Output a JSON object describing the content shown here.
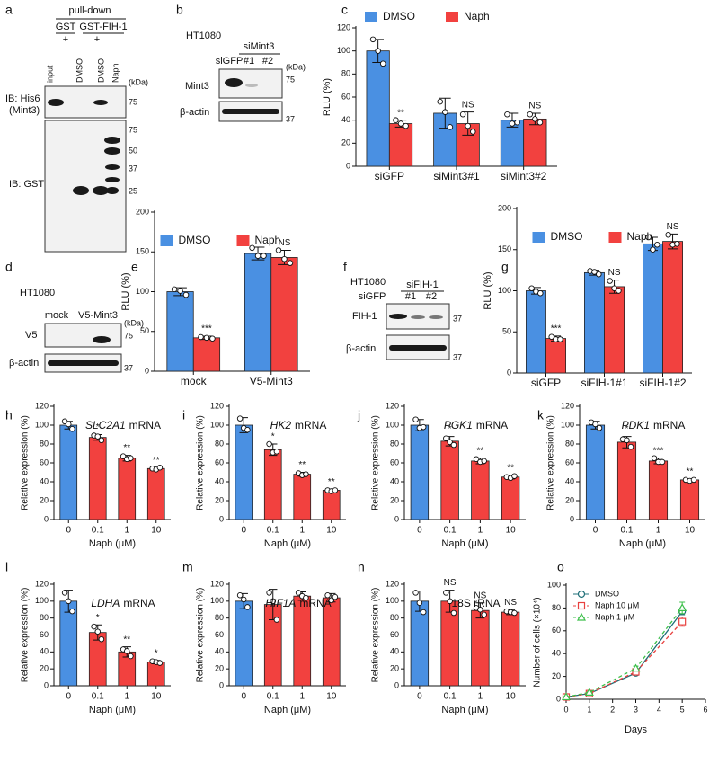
{
  "blots": [
    {
      "label": "a",
      "texts": [
        "pull-down",
        "GST",
        "+",
        "GST-FIH-1",
        "+",
        "input",
        "DMSO",
        "DMSO",
        "Naph",
        "IB: His6",
        "(Mint3)",
        "IB: GST",
        "(kDa)",
        "75",
        "75",
        "50",
        "37",
        "25"
      ]
    },
    {
      "label": "b",
      "texts": [
        "HT1080",
        "siMint3",
        "siGFP",
        "#1",
        "#2",
        "(kDa)",
        "Mint3",
        "75",
        "β-actin",
        "37"
      ]
    },
    {
      "label": "d",
      "texts": [
        "HT1080",
        "mock",
        "V5-Mint3",
        "(kDa)",
        "V5",
        "75",
        "β-actin",
        "37"
      ]
    },
    {
      "label": "f",
      "texts": [
        "HT1080",
        "siFIH-1",
        "siGFP",
        "#1",
        "#2",
        "FIH-1",
        "37",
        "β-actin",
        "37"
      ]
    }
  ],
  "chart_data": [
    {
      "type": "bar",
      "label": "c",
      "ylabel": "RLU (%)",
      "categories": [
        "siGFP",
        "siMint3#1",
        "siMint3#2"
      ],
      "ylim": [
        0,
        120
      ],
      "yticks": [
        0,
        20,
        40,
        60,
        80,
        100,
        120
      ],
      "legend": "top",
      "series": [
        {
          "name": "DMSO",
          "color": "#4a90e2",
          "values": [
            100,
            46,
            40
          ],
          "errors": [
            10,
            13,
            6
          ],
          "points": [
            [
              110,
              100,
              89
            ],
            [
              56,
              47,
              34
            ],
            [
              45,
              37,
              38
            ]
          ]
        },
        {
          "name": "Naph",
          "color": "#f2413f",
          "values": [
            37,
            37,
            41
          ],
          "errors": [
            3,
            10,
            5
          ],
          "points": [
            [
              40,
              37,
              35
            ],
            [
              45,
              35,
              30
            ],
            [
              45,
              41,
              38
            ]
          ],
          "annotations": [
            "**",
            "NS",
            "NS"
          ]
        }
      ]
    },
    {
      "type": "bar",
      "label": "e",
      "ylabel": "RLU (%)",
      "categories": [
        "mock",
        "V5-Mint3"
      ],
      "ylim": [
        0,
        200
      ],
      "yticks": [
        0,
        50,
        100,
        150,
        200
      ],
      "legend": "upper center",
      "series": [
        {
          "name": "DMSO",
          "color": "#4a90e2",
          "values": [
            100,
            148
          ],
          "errors": [
            5,
            8
          ],
          "points": [
            [
              103,
              101,
              96
            ],
            [
              155,
              145,
              145
            ]
          ]
        },
        {
          "name": "Naph",
          "color": "#f2413f",
          "values": [
            42,
            143
          ],
          "errors": [
            2,
            9
          ],
          "points": [
            [
              43,
              42,
              41
            ],
            [
              152,
              141,
              136
            ]
          ],
          "annotations": [
            "***",
            "NS"
          ]
        }
      ]
    },
    {
      "type": "bar",
      "label": "g",
      "ylabel": "RLU (%)",
      "categories": [
        "siGFP",
        "siFIH-1#1",
        "siFIH-1#2"
      ],
      "ylim": [
        0,
        200
      ],
      "yticks": [
        0,
        50,
        100,
        150,
        200
      ],
      "legend": "upper center",
      "series": [
        {
          "name": "DMSO",
          "color": "#4a90e2",
          "values": [
            100,
            122,
            157
          ],
          "errors": [
            4,
            3,
            8
          ],
          "points": [
            [
              103,
              99,
              97
            ],
            [
              124,
              123,
              120
            ],
            [
              165,
              150,
              156
            ]
          ]
        },
        {
          "name": "Naph",
          "color": "#f2413f",
          "values": [
            42,
            105,
            160
          ],
          "errors": [
            3,
            8,
            9
          ],
          "points": [
            [
              44,
              41,
              41
            ],
            [
              112,
              103,
              100
            ],
            [
              168,
              156,
              157
            ]
          ],
          "annotations": [
            "***",
            "NS",
            "NS"
          ]
        }
      ]
    },
    {
      "type": "bar",
      "label": "h",
      "title_gene": "SLC2A1",
      "title": "mRNA",
      "ylabel": "Relative expression (%)",
      "xlabel": "Naph (μM)",
      "categories": [
        "0",
        "0.1",
        "1",
        "10"
      ],
      "ylim": [
        0,
        120
      ],
      "yticks": [
        0,
        20,
        40,
        60,
        80,
        100,
        120
      ],
      "series": [
        {
          "colors": [
            "#4a90e2",
            "#f2413f",
            "#f2413f",
            "#f2413f"
          ],
          "values": [
            100,
            87,
            65,
            54
          ],
          "errors": [
            4,
            3,
            3,
            1
          ],
          "points": [
            [
              104,
              101,
              96
            ],
            [
              89,
              88,
              84
            ],
            [
              67,
              64,
              65
            ],
            [
              54,
              53,
              55
            ]
          ],
          "annotations": [
            null,
            "*",
            "**",
            "**"
          ]
        }
      ]
    },
    {
      "type": "bar",
      "label": "i",
      "title_gene": "HK2",
      "title": "mRNA",
      "ylabel": "Relative expression (%)",
      "xlabel": "Naph (μM)",
      "categories": [
        "0",
        "0.1",
        "1",
        "10"
      ],
      "ylim": [
        0,
        120
      ],
      "yticks": [
        0,
        20,
        40,
        60,
        80,
        100,
        120
      ],
      "series": [
        {
          "colors": [
            "#4a90e2",
            "#f2413f",
            "#f2413f",
            "#f2413f"
          ],
          "values": [
            100,
            74,
            48,
            31
          ],
          "errors": [
            8,
            6,
            2,
            1
          ],
          "points": [
            [
              107,
              97,
              95
            ],
            [
              80,
              71,
              72
            ],
            [
              49,
              47,
              48
            ],
            [
              31,
              30,
              31
            ]
          ],
          "annotations": [
            null,
            "*",
            "**",
            "**"
          ]
        }
      ]
    },
    {
      "type": "bar",
      "label": "j",
      "title_gene": "PGK1",
      "title": "mRNA",
      "ylabel": "Relative expression (%)",
      "xlabel": "Naph (μM)",
      "categories": [
        "0",
        "0.1",
        "1",
        "10"
      ],
      "ylim": [
        0,
        120
      ],
      "yticks": [
        0,
        20,
        40,
        60,
        80,
        100,
        120
      ],
      "series": [
        {
          "colors": [
            "#4a90e2",
            "#f2413f",
            "#f2413f",
            "#f2413f"
          ],
          "values": [
            100,
            83,
            62,
            45
          ],
          "errors": [
            6,
            5,
            3,
            2
          ],
          "points": [
            [
              106,
              97,
              98
            ],
            [
              86,
              82,
              79
            ],
            [
              64,
              61,
              62
            ],
            [
              45,
              44,
              46
            ]
          ],
          "annotations": [
            null,
            "*",
            "**",
            "**"
          ]
        }
      ]
    },
    {
      "type": "bar",
      "label": "k",
      "title_gene": "PDK1",
      "title": "mRNA",
      "ylabel": "Relative expression (%)",
      "xlabel": "Naph (μM)",
      "categories": [
        "0",
        "0.1",
        "1",
        "10"
      ],
      "ylim": [
        0,
        120
      ],
      "yticks": [
        0,
        20,
        40,
        60,
        80,
        100,
        120
      ],
      "series": [
        {
          "colors": [
            "#4a90e2",
            "#f2413f",
            "#f2413f",
            "#f2413f"
          ],
          "values": [
            100,
            82,
            62,
            42
          ],
          "errors": [
            4,
            6,
            3,
            1
          ],
          "points": [
            [
              103,
              101,
              97
            ],
            [
              85,
              84,
              77
            ],
            [
              65,
              61,
              61
            ],
            [
              42,
              41,
              42
            ]
          ],
          "annotations": [
            null,
            "*",
            "***",
            "**"
          ]
        }
      ]
    },
    {
      "type": "bar",
      "label": "l",
      "title_gene": "LDHA",
      "title": "mRNA",
      "ylabel": "Relative expression (%)",
      "xlabel": "Naph (μM)",
      "categories": [
        "0",
        "0.1",
        "1",
        "10"
      ],
      "ylim": [
        0,
        120
      ],
      "yticks": [
        0,
        20,
        40,
        60,
        80,
        100,
        120
      ],
      "series": [
        {
          "colors": [
            "#4a90e2",
            "#f2413f",
            "#f2413f",
            "#f2413f"
          ],
          "values": [
            100,
            63,
            40,
            28
          ],
          "errors": [
            13,
            9,
            6,
            2
          ],
          "points": [
            [
              110,
              100,
              88
            ],
            [
              70,
              64,
              55
            ],
            [
              43,
              41,
              35
            ],
            [
              29,
              28,
              27
            ]
          ],
          "annotations": [
            null,
            "*",
            "**",
            "*"
          ]
        }
      ]
    },
    {
      "type": "bar",
      "label": "m",
      "title_gene": "HIF1A",
      "title": "mRNA",
      "ylabel": "Relative expression (%)",
      "xlabel": "Naph (μM)",
      "categories": [
        "0",
        "0.1",
        "1",
        "10"
      ],
      "ylim": [
        0,
        120
      ],
      "yticks": [
        0,
        20,
        40,
        60,
        80,
        100,
        120
      ],
      "series": [
        {
          "colors": [
            "#4a90e2",
            "#f2413f",
            "#f2413f",
            "#f2413f"
          ],
          "values": [
            100,
            96,
            106,
            104
          ],
          "errors": [
            9,
            18,
            5,
            5
          ],
          "points": [
            [
              107,
              102,
              93
            ],
            [
              110,
              100,
              78
            ],
            [
              110,
              106,
              104
            ],
            [
              107,
              101,
              105
            ]
          ]
        }
      ]
    },
    {
      "type": "bar",
      "label": "n",
      "title": "18S rRNA",
      "ylabel": "Relative expression (%)",
      "xlabel": "Naph (μM)",
      "categories": [
        "0",
        "0.1",
        "1",
        "10"
      ],
      "ylim": [
        0,
        120
      ],
      "yticks": [
        0,
        20,
        40,
        60,
        80,
        100,
        120
      ],
      "series": [
        {
          "colors": [
            "#4a90e2",
            "#f2413f",
            "#f2413f",
            "#f2413f"
          ],
          "values": [
            100,
            100,
            89,
            87
          ],
          "errors": [
            12,
            13,
            9,
            3
          ],
          "points": [
            [
              110,
              98,
              87
            ],
            [
              110,
              100,
              86
            ],
            [
              92,
              90,
              84
            ],
            [
              88,
              87,
              86
            ]
          ],
          "annotations": [
            null,
            "NS",
            "NS",
            "NS"
          ]
        }
      ]
    },
    {
      "type": "line",
      "label": "o",
      "ylabel": "Number of cells (×10⁴)",
      "xlabel": "Days",
      "x": [
        0,
        1,
        3,
        5
      ],
      "xlim": [
        0,
        6
      ],
      "xticks": [
        0,
        1,
        2,
        3,
        4,
        5,
        6
      ],
      "ylim": [
        0,
        100
      ],
      "yticks": [
        0,
        20,
        40,
        60,
        80,
        100
      ],
      "legend": "upper left",
      "series": [
        {
          "name": "DMSO",
          "color": "#1f6f78",
          "marker": "circle",
          "dashed": false,
          "values": [
            2,
            5,
            23,
            77
          ],
          "errors": [
            0.3,
            0.5,
            2,
            3
          ]
        },
        {
          "name": "Naph 10 μM",
          "color": "#e8413f",
          "marker": "square",
          "dashed": true,
          "values": [
            2,
            5,
            24,
            68
          ],
          "errors": [
            0.3,
            0.5,
            2,
            4
          ]
        },
        {
          "name": "Naph 1 μM",
          "color": "#3cbf4a",
          "marker": "triangle",
          "dashed": true,
          "values": [
            2,
            6,
            27,
            80
          ],
          "errors": [
            0.3,
            0.5,
            2,
            5
          ]
        }
      ]
    }
  ]
}
